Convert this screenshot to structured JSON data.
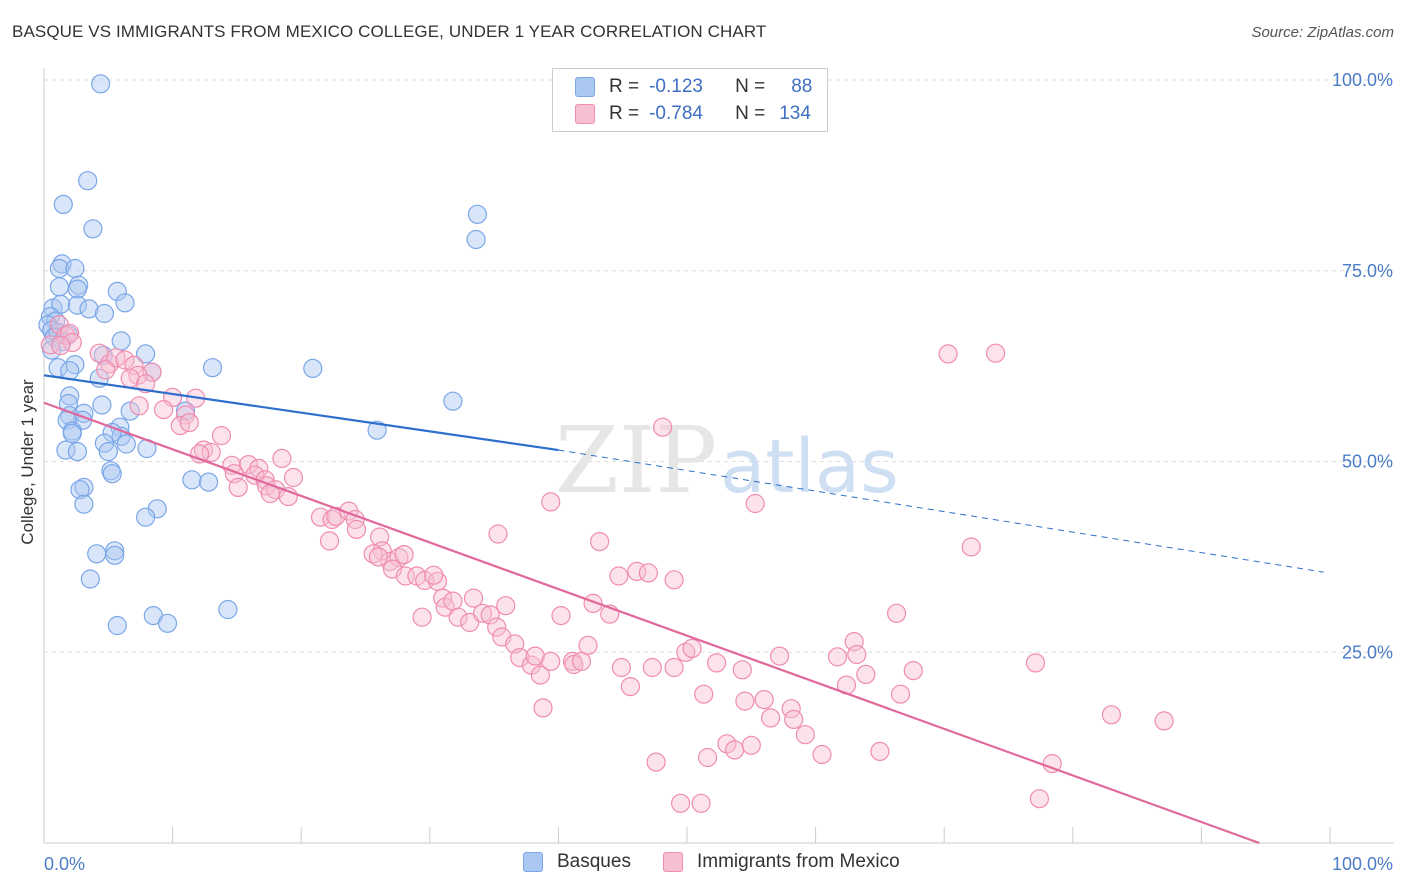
{
  "title": "BASQUE VS IMMIGRANTS FROM MEXICO COLLEGE, UNDER 1 YEAR CORRELATION CHART",
  "source": "Source: ZipAtlas.com",
  "watermark": {
    "zip": "ZIP",
    "atlas": "atlas"
  },
  "legend": {
    "rows": [
      {
        "r_label": "R =",
        "r_value": "-0.123",
        "n_label": "N =",
        "n_value": "88"
      },
      {
        "r_label": "R =",
        "r_value": "-0.784",
        "n_label": "N =",
        "n_value": "134"
      }
    ]
  },
  "chart_data": {
    "type": "scatter",
    "title": "BASQUE VS IMMIGRANTS FROM MEXICO COLLEGE, UNDER 1 YEAR CORRELATION CHART",
    "xlabel": "",
    "ylabel": "College, Under 1 year",
    "xlim": [
      0,
      100
    ],
    "ylim": [
      0,
      100
    ],
    "x_ticks": [
      "0.0%",
      "100.0%"
    ],
    "y_ticks": [
      "25.0%",
      "50.0%",
      "75.0%",
      "100.0%"
    ],
    "y_tick_values": [
      25,
      50,
      75,
      100
    ],
    "grid": true,
    "legend_placement": "bottom-center",
    "series": [
      {
        "name": "Basques",
        "color": "#7aa6e8",
        "fill": "#aac8f2",
        "line_color": "#2f6fcc",
        "trend": {
          "x0": 0,
          "y0": 61.3,
          "x1": 40,
          "y1": 51.5,
          "x_dash_end": 99.5,
          "y_dash_end": 35.5
        },
        "points": [
          [
            4.4,
            99.5
          ],
          [
            3.4,
            86.8
          ],
          [
            1.5,
            83.7
          ],
          [
            3.8,
            80.5
          ],
          [
            33.6,
            79.1
          ],
          [
            33.7,
            82.4
          ],
          [
            1.4,
            75.9
          ],
          [
            1.2,
            75.3
          ],
          [
            2.4,
            75.3
          ],
          [
            2.7,
            73.1
          ],
          [
            1.2,
            72.9
          ],
          [
            2.6,
            72.6
          ],
          [
            5.7,
            72.3
          ],
          [
            6.3,
            70.8
          ],
          [
            0.7,
            70.1
          ],
          [
            1.3,
            70.6
          ],
          [
            2.6,
            70.5
          ],
          [
            3.5,
            70.0
          ],
          [
            4.7,
            69.4
          ],
          [
            0.5,
            69.0
          ],
          [
            0.9,
            68.4
          ],
          [
            0.3,
            67.9
          ],
          [
            0.6,
            67.2
          ],
          [
            1.1,
            66.9
          ],
          [
            1.9,
            66.6
          ],
          [
            1.4,
            65.7
          ],
          [
            0.8,
            66.3
          ],
          [
            6.0,
            65.8
          ],
          [
            0.6,
            64.6
          ],
          [
            4.6,
            63.9
          ],
          [
            7.9,
            64.1
          ],
          [
            2.4,
            62.7
          ],
          [
            1.1,
            62.3
          ],
          [
            2.0,
            61.9
          ],
          [
            8.4,
            61.7
          ],
          [
            13.1,
            62.3
          ],
          [
            20.9,
            62.2
          ],
          [
            4.3,
            60.9
          ],
          [
            2.0,
            58.6
          ],
          [
            1.9,
            57.6
          ],
          [
            4.5,
            57.4
          ],
          [
            6.7,
            56.6
          ],
          [
            2.0,
            56.0
          ],
          [
            3.1,
            56.3
          ],
          [
            3.0,
            55.4
          ],
          [
            1.8,
            55.4
          ],
          [
            11.0,
            56.6
          ],
          [
            31.8,
            57.9
          ],
          [
            5.9,
            54.5
          ],
          [
            2.2,
            54.0
          ],
          [
            2.2,
            53.7
          ],
          [
            6.0,
            53.3
          ],
          [
            5.3,
            53.8
          ],
          [
            4.7,
            52.4
          ],
          [
            6.4,
            52.3
          ],
          [
            1.7,
            51.5
          ],
          [
            2.6,
            51.3
          ],
          [
            5.0,
            51.3
          ],
          [
            8.0,
            51.7
          ],
          [
            25.9,
            54.1
          ],
          [
            5.2,
            48.8
          ],
          [
            5.3,
            48.4
          ],
          [
            11.5,
            47.6
          ],
          [
            12.8,
            47.3
          ],
          [
            3.1,
            46.6
          ],
          [
            2.8,
            46.3
          ],
          [
            3.1,
            44.4
          ],
          [
            8.8,
            43.8
          ],
          [
            7.9,
            42.7
          ],
          [
            4.1,
            37.9
          ],
          [
            5.5,
            38.3
          ],
          [
            5.5,
            37.7
          ],
          [
            3.6,
            34.6
          ],
          [
            8.5,
            29.8
          ],
          [
            9.6,
            28.8
          ],
          [
            14.3,
            30.6
          ],
          [
            5.7,
            28.5
          ]
        ]
      },
      {
        "name": "Immigrants from Mexico",
        "color": "#f08cb0",
        "fill": "#f6bfd2",
        "line_color": "#e0689a",
        "trend": {
          "x0": 0,
          "y0": 57.7,
          "x1": 94.5,
          "y1": 0
        },
        "points": [
          [
            0.5,
            65.3
          ],
          [
            1.2,
            67.9
          ],
          [
            1.7,
            66.5
          ],
          [
            2.0,
            66.8
          ],
          [
            2.2,
            65.6
          ],
          [
            1.3,
            65.2
          ],
          [
            4.3,
            64.2
          ],
          [
            5.1,
            62.8
          ],
          [
            5.6,
            63.6
          ],
          [
            6.3,
            63.3
          ],
          [
            7.0,
            62.6
          ],
          [
            4.8,
            62.0
          ],
          [
            8.4,
            61.7
          ],
          [
            7.3,
            61.3
          ],
          [
            6.7,
            60.9
          ],
          [
            7.9,
            60.2
          ],
          [
            10.0,
            58.4
          ],
          [
            11.8,
            58.3
          ],
          [
            7.4,
            57.3
          ],
          [
            9.3,
            56.8
          ],
          [
            11.0,
            56.1
          ],
          [
            10.6,
            54.7
          ],
          [
            11.3,
            55.1
          ],
          [
            13.8,
            53.4
          ],
          [
            12.4,
            51.5
          ],
          [
            13.0,
            51.2
          ],
          [
            12.1,
            51.0
          ],
          [
            18.5,
            50.4
          ],
          [
            14.6,
            49.5
          ],
          [
            15.9,
            49.6
          ],
          [
            16.7,
            49.1
          ],
          [
            14.8,
            48.4
          ],
          [
            16.4,
            48.2
          ],
          [
            17.2,
            47.6
          ],
          [
            19.4,
            47.9
          ],
          [
            15.1,
            46.6
          ],
          [
            17.3,
            46.8
          ],
          [
            18.0,
            46.3
          ],
          [
            17.6,
            45.8
          ],
          [
            19.0,
            45.4
          ],
          [
            21.5,
            42.7
          ],
          [
            22.4,
            42.4
          ],
          [
            22.7,
            42.8
          ],
          [
            22.2,
            39.6
          ],
          [
            23.7,
            43.5
          ],
          [
            24.2,
            42.4
          ],
          [
            24.3,
            41.1
          ],
          [
            26.1,
            40.1
          ],
          [
            26.3,
            38.3
          ],
          [
            26.9,
            36.9
          ],
          [
            25.6,
            37.9
          ],
          [
            26.0,
            37.5
          ],
          [
            27.6,
            37.4
          ],
          [
            28.0,
            37.8
          ],
          [
            27.1,
            35.9
          ],
          [
            28.1,
            35.0
          ],
          [
            29.0,
            35.0
          ],
          [
            29.6,
            34.4
          ],
          [
            30.6,
            34.3
          ],
          [
            30.3,
            35.1
          ],
          [
            29.4,
            29.6
          ],
          [
            31.0,
            32.1
          ],
          [
            31.2,
            30.9
          ],
          [
            31.8,
            31.7
          ],
          [
            32.2,
            29.6
          ],
          [
            33.4,
            32.1
          ],
          [
            33.1,
            28.9
          ],
          [
            34.1,
            30.1
          ],
          [
            34.7,
            29.9
          ],
          [
            35.2,
            28.3
          ],
          [
            35.6,
            27.0
          ],
          [
            35.9,
            31.1
          ],
          [
            36.6,
            26.1
          ],
          [
            37.0,
            24.3
          ],
          [
            37.9,
            23.3
          ],
          [
            38.2,
            24.5
          ],
          [
            38.6,
            22.0
          ],
          [
            38.8,
            17.7
          ],
          [
            39.4,
            23.8
          ],
          [
            40.2,
            29.8
          ],
          [
            41.1,
            23.8
          ],
          [
            41.2,
            23.4
          ],
          [
            41.8,
            23.8
          ],
          [
            42.3,
            25.9
          ],
          [
            42.7,
            31.4
          ],
          [
            43.2,
            39.5
          ],
          [
            44.0,
            30.0
          ],
          [
            44.7,
            35.0
          ],
          [
            44.9,
            23.0
          ],
          [
            45.6,
            20.5
          ],
          [
            46.1,
            35.6
          ],
          [
            47.0,
            35.4
          ],
          [
            47.3,
            23.0
          ],
          [
            47.6,
            10.6
          ],
          [
            48.1,
            54.5
          ],
          [
            49.0,
            34.5
          ],
          [
            49.0,
            23.0
          ],
          [
            49.5,
            5.2
          ],
          [
            49.9,
            25.0
          ],
          [
            50.4,
            25.5
          ],
          [
            51.1,
            5.2
          ],
          [
            51.3,
            19.5
          ],
          [
            51.6,
            11.2
          ],
          [
            52.3,
            23.6
          ],
          [
            53.1,
            13.0
          ],
          [
            53.7,
            12.2
          ],
          [
            54.3,
            22.7
          ],
          [
            54.5,
            18.6
          ],
          [
            55.0,
            12.8
          ],
          [
            55.3,
            44.5
          ],
          [
            56.0,
            18.8
          ],
          [
            56.5,
            16.4
          ],
          [
            57.2,
            24.5
          ],
          [
            58.1,
            17.6
          ],
          [
            58.3,
            16.2
          ],
          [
            59.2,
            14.2
          ],
          [
            60.5,
            11.6
          ],
          [
            61.7,
            24.4
          ],
          [
            62.4,
            20.7
          ],
          [
            63.0,
            26.4
          ],
          [
            63.2,
            24.7
          ],
          [
            63.9,
            22.1
          ],
          [
            65.0,
            12.0
          ],
          [
            66.3,
            30.1
          ],
          [
            66.6,
            19.5
          ],
          [
            67.6,
            22.6
          ],
          [
            70.3,
            64.1
          ],
          [
            72.1,
            38.8
          ],
          [
            74.0,
            64.2
          ],
          [
            77.1,
            23.6
          ],
          [
            78.4,
            10.4
          ],
          [
            77.4,
            5.8
          ],
          [
            83.0,
            16.8
          ],
          [
            87.1,
            16.0
          ],
          [
            39.4,
            44.7
          ],
          [
            35.3,
            40.5
          ]
        ]
      }
    ]
  }
}
